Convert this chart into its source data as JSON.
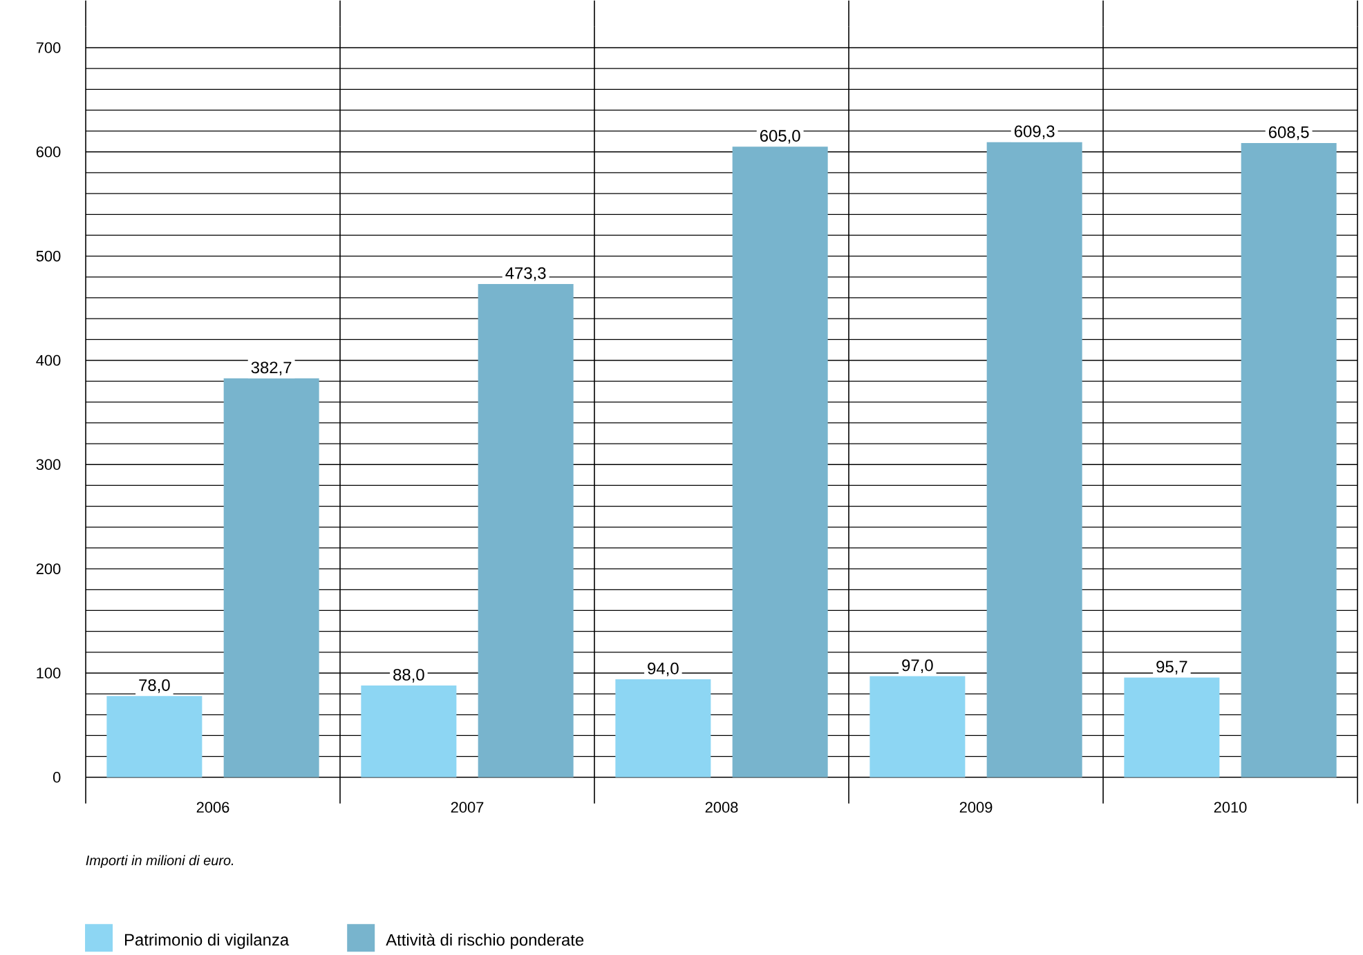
{
  "chart_data": {
    "type": "bar",
    "categories": [
      "2006",
      "2007",
      "2008",
      "2009",
      "2010"
    ],
    "series": [
      {
        "name": "Patrimonio di vigilanza",
        "color": "#8dd6f3",
        "values": [
          78.0,
          88.0,
          94.0,
          97.0,
          95.7
        ],
        "value_labels": [
          "78,0",
          "88,0",
          "94,0",
          "97,0",
          "95,7"
        ]
      },
      {
        "name": "Attività di rischio ponderate",
        "color": "#78b4cd",
        "values": [
          382.7,
          473.3,
          605.0,
          609.3,
          608.5
        ],
        "value_labels": [
          "382,7",
          "473,3",
          "605,0",
          "609,3",
          "608,5"
        ]
      }
    ],
    "ylim": [
      0,
      720
    ],
    "yticks": [
      0,
      100,
      200,
      300,
      400,
      500,
      600,
      700
    ],
    "grid": "y",
    "legend": "bottom left",
    "annotations": [
      "*Importi in milioni di euro.*"
    ]
  }
}
